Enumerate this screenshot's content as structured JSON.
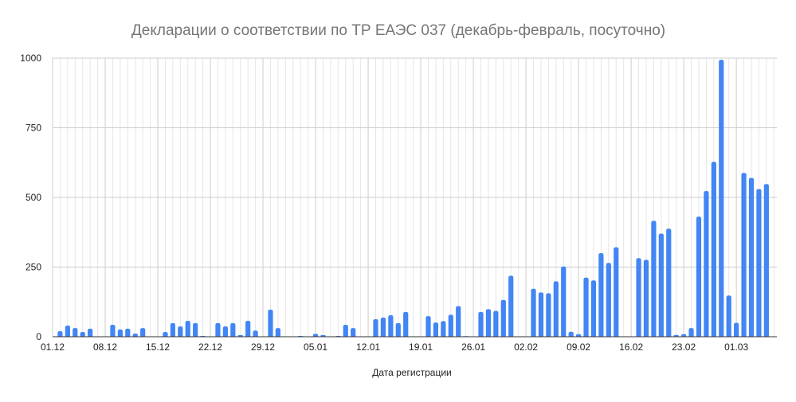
{
  "chart_data": {
    "type": "bar",
    "title": "Декларации о соответствии по ТР ЕАЭС 037 (декабрь-февраль, посуточно)",
    "xlabel": "Дата регистрации",
    "ylabel": "",
    "ylim": [
      0,
      1000
    ],
    "yticks": [
      "0",
      "250",
      "500",
      "750",
      "1000"
    ],
    "xtick_labels": [
      "01.12",
      "08.12",
      "15.12",
      "22.12",
      "29.12",
      "05.01",
      "12.01",
      "19.01",
      "26.01",
      "02.02",
      "09.02",
      "16.02",
      "23.02",
      "01.03"
    ],
    "grid": true,
    "bar_color": "#4285f4",
    "categories": [
      "01.12",
      "02.12",
      "03.12",
      "04.12",
      "05.12",
      "06.12",
      "07.12",
      "08.12",
      "09.12",
      "10.12",
      "11.12",
      "12.12",
      "13.12",
      "14.12",
      "15.12",
      "16.12",
      "17.12",
      "18.12",
      "19.12",
      "20.12",
      "21.12",
      "22.12",
      "23.12",
      "24.12",
      "25.12",
      "26.12",
      "27.12",
      "28.12",
      "29.12",
      "30.12",
      "31.12",
      "01.01",
      "02.01",
      "03.01",
      "04.01",
      "05.01",
      "06.01",
      "07.01",
      "08.01",
      "09.01",
      "10.01",
      "11.01",
      "12.01",
      "13.01",
      "14.01",
      "15.01",
      "16.01",
      "17.01",
      "18.01",
      "19.01",
      "20.01",
      "21.01",
      "22.01",
      "23.01",
      "24.01",
      "25.01",
      "26.01",
      "27.01",
      "28.01",
      "29.01",
      "30.01",
      "31.01",
      "01.02",
      "02.02",
      "03.02",
      "04.02",
      "05.02",
      "06.02",
      "07.02",
      "08.02",
      "09.02",
      "10.02",
      "11.02",
      "12.02",
      "13.02",
      "14.02",
      "15.02",
      "16.02",
      "17.02",
      "18.02",
      "19.02",
      "20.02",
      "21.02",
      "22.02",
      "23.02",
      "24.02",
      "25.02",
      "26.02",
      "27.02",
      "28.02",
      "29.02",
      "01.03",
      "02.03",
      "03.03",
      "04.03",
      "05.03"
    ],
    "values": [
      0,
      20,
      40,
      31,
      17,
      29,
      0,
      0,
      43,
      26,
      29,
      11,
      31,
      0,
      0,
      17,
      49,
      37,
      57,
      49,
      3,
      0,
      49,
      37,
      49,
      6,
      57,
      22,
      0,
      97,
      31,
      0,
      0,
      3,
      0,
      10,
      6,
      0,
      3,
      43,
      31,
      0,
      0,
      63,
      69,
      77,
      49,
      89,
      0,
      0,
      74,
      51,
      56,
      79,
      110,
      2,
      0,
      89,
      99,
      93,
      132,
      219,
      0,
      0,
      172,
      159,
      156,
      199,
      252,
      18,
      9,
      212,
      202,
      300,
      265,
      321,
      0,
      0,
      282,
      276,
      416,
      370,
      388,
      6,
      9,
      31,
      431,
      523,
      628,
      994,
      148,
      50,
      588,
      570,
      530,
      548
    ]
  }
}
